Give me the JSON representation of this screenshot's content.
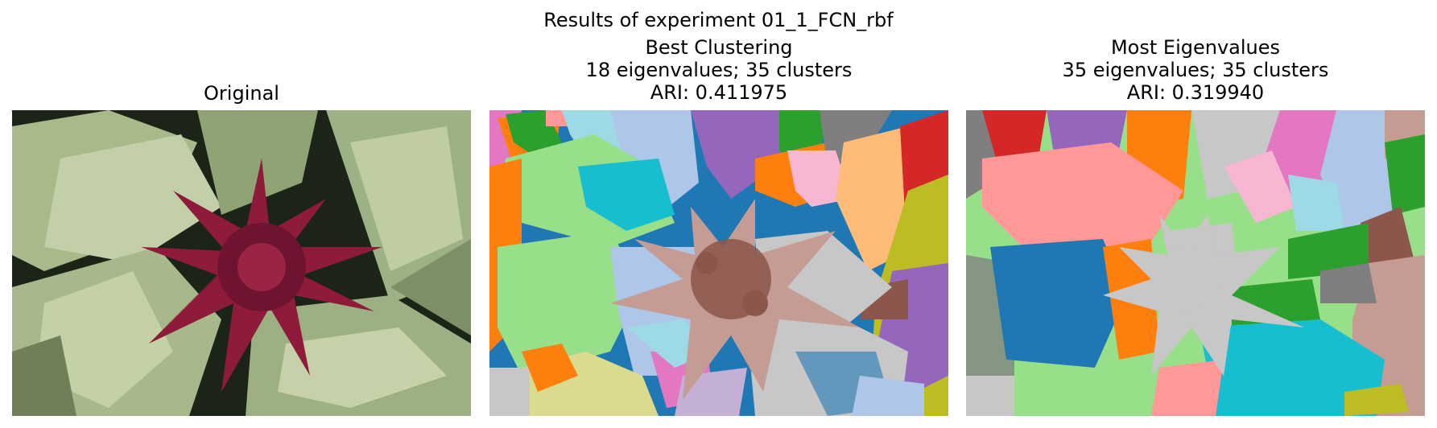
{
  "figure": {
    "suptitle": "Results of experiment 01_1_FCN_rbf"
  },
  "panels": {
    "original": {
      "title": "Original"
    },
    "best": {
      "title": "Best Clustering",
      "line2": "18 eigenvalues; 35 clusters",
      "line3": "ARI: 0.411975"
    },
    "most": {
      "title": "Most Eigenvalues",
      "line2": "35 eigenvalues; 35 clusters",
      "line3": "ARI: 0.319940"
    }
  },
  "palette": {
    "blue": "#1f77b4",
    "light_blue": "#aec7e8",
    "orange": "#ff7f0e",
    "light_orange": "#ffbb78",
    "green": "#2ca02c",
    "light_green": "#98df8a",
    "red": "#d62728",
    "pink": "#ff9896",
    "purple": "#9467bd",
    "brown": "#8c564b",
    "tan": "#c49c94",
    "magenta": "#e377c2",
    "light_pink": "#f7b6d2",
    "gray": "#7f7f7f",
    "light_gray": "#c7c7c7",
    "olive": "#bcbd22",
    "cyan": "#17becf",
    "light_cyan": "#9edae5",
    "leaf_green": "#a8b98a",
    "flower_red": "#8e1b3a",
    "dark_bg": "#1c2418"
  }
}
